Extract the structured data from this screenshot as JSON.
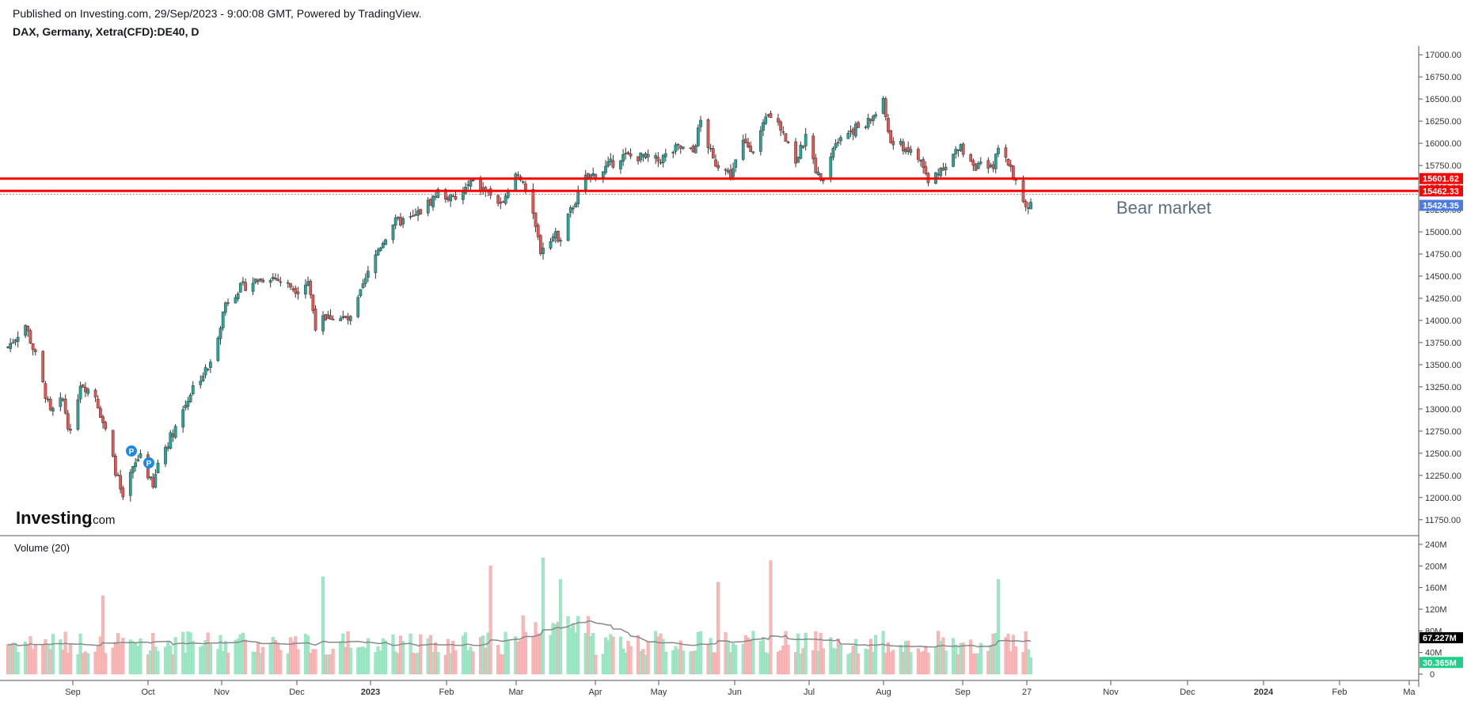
{
  "header": {
    "published": "Published on Investing.com, 29/Sep/2023 - 9:00:08 GMT, Powered by TradingView.",
    "symbol": "DAX, Germany, Xetra(CFD):DE40, D"
  },
  "logo": {
    "main": "Investing",
    "suffix": ".com"
  },
  "volume_title": "Volume (20)",
  "annotation": "Bear market",
  "colors": {
    "up": "#26a69a",
    "down": "#ef5350",
    "resistance": "#ff0000",
    "current_price_tag": "#4c7be6",
    "vol_up": "#9ee8c6",
    "vol_down": "#f9b7b7",
    "vol_ma": "#888888",
    "vol_current_tag": "#1fcf87"
  },
  "chart_data": [
    {
      "type": "candlestick",
      "title": "DAX, Germany, Xetra(CFD):DE40, D",
      "y_ticks": [
        "17000.00",
        "16750.00",
        "16500.00",
        "16250.00",
        "16000.00",
        "15750.00",
        "15500.00",
        "15250.00",
        "15000.00",
        "14750.00",
        "14500.00",
        "14250.00",
        "14000.00",
        "13750.00",
        "13500.00",
        "13250.00",
        "13000.00",
        "12750.00",
        "12500.00",
        "12250.00",
        "12000.00",
        "11750.00"
      ],
      "ylim": [
        11650,
        17100
      ],
      "x_ticks": [
        {
          "label": "Sep",
          "year": false
        },
        {
          "label": "Oct",
          "year": false
        },
        {
          "label": "Nov",
          "year": false
        },
        {
          "label": "Dec",
          "year": false
        },
        {
          "label": "2023",
          "year": true
        },
        {
          "label": "Feb",
          "year": false
        },
        {
          "label": "Mar",
          "year": false
        },
        {
          "label": "Apr",
          "year": false
        },
        {
          "label": "May",
          "year": false
        },
        {
          "label": "Jun",
          "year": false
        },
        {
          "label": "Jul",
          "year": false
        },
        {
          "label": "Aug",
          "year": false
        },
        {
          "label": "Sep",
          "year": false
        },
        {
          "label": "27",
          "year": false
        },
        {
          "label": "Nov",
          "year": false
        },
        {
          "label": "Dec",
          "year": false
        },
        {
          "label": "2024",
          "year": true
        },
        {
          "label": "Feb",
          "year": false
        },
        {
          "label": "Ma",
          "year": false
        }
      ],
      "horizontal_lines": [
        {
          "value": 15601.62,
          "label": "15601.62"
        },
        {
          "value": 15462.33,
          "label": "15462.33"
        }
      ],
      "current_price": {
        "value": 15424.35,
        "label": "15424.35"
      },
      "close_path": [
        [
          "2022-08-15",
          13700
        ],
        [
          "2022-08-19",
          13850
        ],
        [
          "2022-08-22",
          13950
        ],
        [
          "2022-08-26",
          13600
        ],
        [
          "2022-09-01",
          12950
        ],
        [
          "2022-09-06",
          13100
        ],
        [
          "2022-09-09",
          12700
        ],
        [
          "2022-09-13",
          13300
        ],
        [
          "2022-09-19",
          13150
        ],
        [
          "2022-09-23",
          12750
        ],
        [
          "2022-09-28",
          12200
        ],
        [
          "2022-09-30",
          11950
        ],
        [
          "2022-10-03",
          12250
        ],
        [
          "2022-10-07",
          12500
        ],
        [
          "2022-10-12",
          12100
        ],
        [
          "2022-10-14",
          12400
        ],
        [
          "2022-10-21",
          12800
        ],
        [
          "2022-10-28",
          13250
        ],
        [
          "2022-11-04",
          13500
        ],
        [
          "2022-11-10",
          14200
        ],
        [
          "2022-11-15",
          14350
        ],
        [
          "2022-11-22",
          14450
        ],
        [
          "2022-11-28",
          14500
        ],
        [
          "2022-12-05",
          14400
        ],
        [
          "2022-12-09",
          14350
        ],
        [
          "2022-12-13",
          14450
        ],
        [
          "2022-12-16",
          13950
        ],
        [
          "2022-12-22",
          14050
        ],
        [
          "2022-12-30",
          14000
        ],
        [
          "2023-01-05",
          14450
        ],
        [
          "2023-01-10",
          14800
        ],
        [
          "2023-01-16",
          15100
        ],
        [
          "2023-01-24",
          15150
        ],
        [
          "2023-01-31",
          15350
        ],
        [
          "2023-02-03",
          15450
        ],
        [
          "2023-02-10",
          15350
        ],
        [
          "2023-02-16",
          15550
        ],
        [
          "2023-02-23",
          15450
        ],
        [
          "2023-03-01",
          15300
        ],
        [
          "2023-03-06",
          15650
        ],
        [
          "2023-03-09",
          15600
        ],
        [
          "2023-03-13",
          15150
        ],
        [
          "2023-03-16",
          14800
        ],
        [
          "2023-03-20",
          14950
        ],
        [
          "2023-03-24",
          14950
        ],
        [
          "2023-03-29",
          15300
        ],
        [
          "2023-04-03",
          15600
        ],
        [
          "2023-04-10",
          15700
        ],
        [
          "2023-04-17",
          15850
        ],
        [
          "2023-04-24",
          15850
        ],
        [
          "2023-05-02",
          15800
        ],
        [
          "2023-05-10",
          15950
        ],
        [
          "2023-05-16",
          15900
        ],
        [
          "2023-05-19",
          16250
        ],
        [
          "2023-05-24",
          15800
        ],
        [
          "2023-05-31",
          15650
        ],
        [
          "2023-06-05",
          16000
        ],
        [
          "2023-06-09",
          15950
        ],
        [
          "2023-06-15",
          16300
        ],
        [
          "2023-06-21",
          16150
        ],
        [
          "2023-06-26",
          15800
        ],
        [
          "2023-06-30",
          16050
        ],
        [
          "2023-07-06",
          15550
        ],
        [
          "2023-07-12",
          16050
        ],
        [
          "2023-07-18",
          16150
        ],
        [
          "2023-07-24",
          16200
        ],
        [
          "2023-07-31",
          16450
        ],
        [
          "2023-08-03",
          16000
        ],
        [
          "2023-08-09",
          15950
        ],
        [
          "2023-08-15",
          15800
        ],
        [
          "2023-08-18",
          15550
        ],
        [
          "2023-08-24",
          15750
        ],
        [
          "2023-08-31",
          15950
        ],
        [
          "2023-09-06",
          15750
        ],
        [
          "2023-09-12",
          15700
        ],
        [
          "2023-09-15",
          15900
        ],
        [
          "2023-09-20",
          15750
        ],
        [
          "2023-09-22",
          15550
        ],
        [
          "2023-09-26",
          15250
        ],
        [
          "2023-09-28",
          15300
        ]
      ]
    },
    {
      "type": "bar",
      "title": "Volume (20)",
      "y_ticks": [
        "240M",
        "200M",
        "160M",
        "120M",
        "80M",
        "40M",
        "0"
      ],
      "ylim": [
        0,
        240
      ],
      "ma_value": {
        "value": 67.227,
        "label": "67.227M"
      },
      "current_volume": {
        "value": 30.365,
        "label": "30.365M"
      },
      "spikes": [
        [
          "2022-09-22",
          145
        ],
        [
          "2022-12-19",
          180
        ],
        [
          "2023-02-24",
          200
        ],
        [
          "2023-03-17",
          215
        ],
        [
          "2023-03-24",
          175
        ],
        [
          "2023-05-26",
          170
        ],
        [
          "2023-06-16",
          210
        ],
        [
          "2023-09-15",
          175
        ]
      ]
    }
  ]
}
